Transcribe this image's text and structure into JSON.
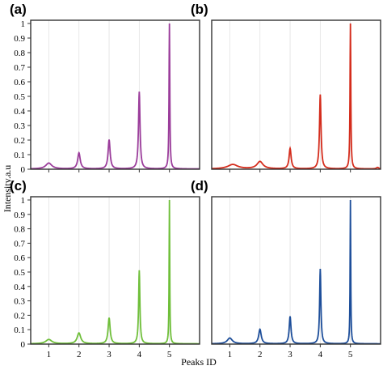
{
  "ylabel": "Intensity.a.u",
  "xlabel": "Peaks ID",
  "chart_data": [
    {
      "type": "line",
      "panel": "(a)",
      "color": "#9b3d9b",
      "xlim": [
        0.4,
        6.0
      ],
      "ylim": [
        0,
        1.0
      ],
      "x_ticks": [
        1,
        2,
        3,
        4,
        5
      ],
      "y_ticks": [
        0,
        0.1,
        0.2,
        0.3,
        0.4,
        0.5,
        0.6,
        0.7,
        0.8,
        0.9,
        1
      ],
      "peaks": [
        {
          "x": 1,
          "y": 0.04,
          "width": 0.12
        },
        {
          "x": 2,
          "y": 0.11,
          "width": 0.05
        },
        {
          "x": 3,
          "y": 0.2,
          "width": 0.04
        },
        {
          "x": 4,
          "y": 0.53,
          "width": 0.03
        },
        {
          "x": 5,
          "y": 1.0,
          "width": 0.015
        }
      ]
    },
    {
      "type": "line",
      "panel": "(b)",
      "color": "#d42c1c",
      "xlim": [
        0.4,
        6.0
      ],
      "ylim": [
        0,
        1.0
      ],
      "x_ticks": [
        1,
        2,
        3,
        4,
        5
      ],
      "y_ticks": [
        0,
        0.1,
        0.2,
        0.3,
        0.4,
        0.5,
        0.6,
        0.7,
        0.8,
        0.9,
        1
      ],
      "peaks": [
        {
          "x": 1.1,
          "y": 0.03,
          "width": 0.2
        },
        {
          "x": 2.0,
          "y": 0.05,
          "width": 0.12
        },
        {
          "x": 3.0,
          "y": 0.14,
          "width": 0.04
        },
        {
          "x": 4.0,
          "y": 0.51,
          "width": 0.03
        },
        {
          "x": 5.0,
          "y": 1.0,
          "width": 0.015
        },
        {
          "x": 5.9,
          "y": 0.01,
          "width": 0.05
        }
      ]
    },
    {
      "type": "line",
      "panel": "(c)",
      "color": "#6fbf3a",
      "xlim": [
        0.4,
        6.0
      ],
      "ylim": [
        0,
        1.0
      ],
      "x_ticks": [
        1,
        2,
        3,
        4,
        5
      ],
      "y_ticks": [
        0,
        0.1,
        0.2,
        0.3,
        0.4,
        0.5,
        0.6,
        0.7,
        0.8,
        0.9,
        1
      ],
      "peaks": [
        {
          "x": 1,
          "y": 0.03,
          "width": 0.12
        },
        {
          "x": 2,
          "y": 0.075,
          "width": 0.07
        },
        {
          "x": 3,
          "y": 0.18,
          "width": 0.04
        },
        {
          "x": 4,
          "y": 0.51,
          "width": 0.025
        },
        {
          "x": 5,
          "y": 1.0,
          "width": 0.012
        }
      ]
    },
    {
      "type": "line",
      "panel": "(d)",
      "color": "#1d4e9a",
      "xlim": [
        0.4,
        6.0
      ],
      "ylim": [
        0,
        1.0
      ],
      "x_ticks": [
        1,
        2,
        3,
        4,
        5
      ],
      "y_ticks": [
        0,
        0.1,
        0.2,
        0.3,
        0.4,
        0.5,
        0.6,
        0.7,
        0.8,
        0.9,
        1
      ],
      "peaks": [
        {
          "x": 1,
          "y": 0.04,
          "width": 0.1
        },
        {
          "x": 2,
          "y": 0.1,
          "width": 0.05
        },
        {
          "x": 3,
          "y": 0.19,
          "width": 0.035
        },
        {
          "x": 4,
          "y": 0.52,
          "width": 0.025
        },
        {
          "x": 5,
          "y": 1.0,
          "width": 0.012
        }
      ]
    }
  ]
}
